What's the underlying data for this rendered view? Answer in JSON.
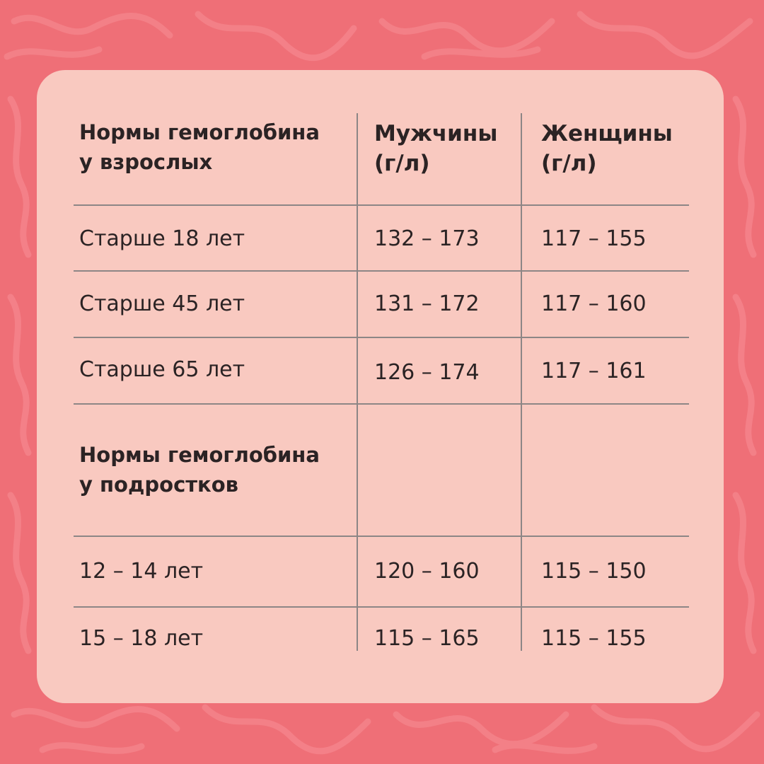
{
  "table": {
    "adults_header": {
      "line1": "Нормы гемоглобина",
      "line2": "у взрослых"
    },
    "men_header": {
      "line1": "Мужчины",
      "line2": "(г/л)"
    },
    "women_header": {
      "line1": "Женщины",
      "line2": "(г/л)"
    },
    "adult_rows": [
      {
        "age": "Старше 18 лет",
        "men": "132 – 173",
        "women": "117 – 155"
      },
      {
        "age": "Старше 45 лет",
        "men": "131 – 172",
        "women": "117 – 160"
      },
      {
        "age": "Старше 65 лет",
        "men": "126 – 174",
        "women": "117 – 161"
      }
    ],
    "teens_header": {
      "line1": "Нормы гемоглобина",
      "line2": "у подростков"
    },
    "teen_rows": [
      {
        "age": "12 – 14 лет",
        "men": "120 – 160",
        "women": "115 – 150"
      },
      {
        "age": "15 – 18 лет",
        "men": "115 – 165",
        "women": "115 – 155"
      }
    ]
  },
  "colors": {
    "background": "#ef6f77",
    "card": "#f9c9c0",
    "rule": "#8d8686",
    "text": "#2b2324"
  }
}
